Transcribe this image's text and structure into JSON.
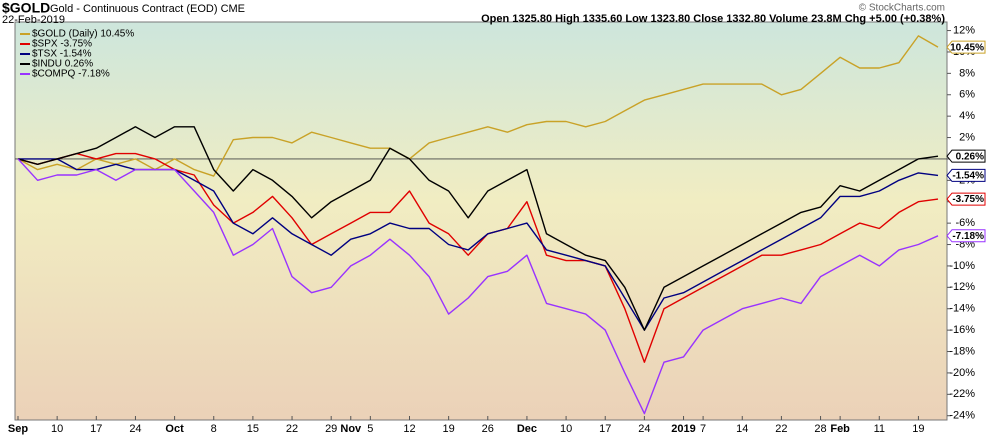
{
  "chart_data": {
    "type": "line",
    "symbol": "$GOLD",
    "title": "Gold - Continuous Contract (EOD) CME",
    "date": "22-Feb-2019",
    "stats": "Open 1325.80  High 1335.60  Low 1323.80  Close 1332.80  Volume 23.8M  Chg +5.00 (+0.38%)",
    "credit": "© StockCharts.com",
    "categories": [
      "Sep",
      null,
      "10",
      null,
      "17",
      null,
      "24",
      null,
      "Oct",
      null,
      "8",
      null,
      "15",
      null,
      "22",
      null,
      "29",
      "Nov",
      "5",
      null,
      "12",
      null,
      "19",
      null,
      "26",
      null,
      "Dec",
      null,
      "10",
      null,
      "17",
      null,
      "24",
      null,
      "2019",
      "7",
      null,
      "14",
      null,
      "22",
      null,
      "28",
      "Feb",
      null,
      "11",
      null,
      "19",
      null
    ],
    "series": [
      {
        "name": "$GOLD (Daily) 10.45%",
        "last_label": "10.45%",
        "color": "#c9a227",
        "values": [
          0,
          -1,
          -0.5,
          -1,
          0,
          -0.5,
          0,
          -1,
          0,
          -1,
          -1.6,
          1.8,
          2,
          2,
          1.5,
          2.5,
          2,
          1.5,
          1,
          1,
          0,
          1.5,
          2,
          2.5,
          3,
          2.5,
          3.2,
          3.5,
          3.5,
          3,
          3.5,
          4.5,
          5.5,
          6,
          6.5,
          7,
          7,
          7,
          7,
          6,
          6.5,
          8,
          9.5,
          8.5,
          8.5,
          9,
          11.5,
          10.45
        ]
      },
      {
        "name": "$SPX -3.75%",
        "last_label": "-3.75%",
        "color": "#e00000",
        "values": [
          0,
          -0.5,
          0,
          0.5,
          0,
          0.5,
          0.5,
          0,
          -1,
          -1.5,
          -4.3,
          -6,
          -5,
          -3.5,
          -5.5,
          -8,
          -7,
          -6,
          -5,
          -5,
          -3,
          -6,
          -7,
          -9,
          -7,
          -6.5,
          -4,
          -9,
          -9.5,
          -9.5,
          -10,
          -14,
          -19,
          -14,
          -13,
          -12,
          -11,
          -10,
          -9,
          -9,
          -8.5,
          -8,
          -7,
          -6,
          -6.5,
          -5,
          -4,
          -3.75
        ]
      },
      {
        "name": "$TSX -1.54%",
        "last_label": "-1.54%",
        "color": "#000080",
        "values": [
          0,
          0,
          0,
          -1,
          -1,
          -0.5,
          -1,
          -1,
          -1,
          -2,
          -3,
          -6,
          -7,
          -5.5,
          -7,
          -8,
          -9,
          -7.5,
          -7,
          -6,
          -6.5,
          -6.5,
          -8,
          -8.5,
          -7,
          -6.5,
          -6,
          -8.5,
          -9,
          -9.5,
          -10,
          -13,
          -16,
          -13,
          -12.5,
          -11.5,
          -10.5,
          -9.5,
          -8.5,
          -7.5,
          -6.5,
          -5.5,
          -3.5,
          -3.5,
          -3,
          -2,
          -1.3,
          -1.54
        ]
      },
      {
        "name": "$INDU 0.26%",
        "last_label": "0.26%",
        "color": "#000000",
        "values": [
          0,
          -0.5,
          0,
          0.5,
          1,
          2,
          3,
          2,
          3,
          3,
          -1,
          -3,
          -1,
          -2,
          -3.5,
          -5.5,
          -4,
          -3,
          -2,
          1,
          0,
          -2,
          -3,
          -5.5,
          -3,
          -2,
          -1,
          -7,
          -8,
          -9,
          -9.5,
          -12,
          -16,
          -12,
          -11,
          -10,
          -9,
          -8,
          -7,
          -6,
          -5,
          -4.5,
          -2.5,
          -3,
          -2,
          -1,
          0,
          0.26
        ]
      },
      {
        "name": "$COMPQ -7.18%",
        "last_label": "-7.18%",
        "color": "#9933ff",
        "values": [
          0,
          -2,
          -1.5,
          -1.5,
          -1,
          -2,
          -1,
          -1,
          -1,
          -3,
          -5,
          -9,
          -8,
          -6.5,
          -11,
          -12.5,
          -12,
          -10,
          -9,
          -7.5,
          -9,
          -11,
          -14.5,
          -13,
          -11,
          -10.5,
          -9,
          -13.5,
          -14,
          -14.5,
          -16,
          -20,
          -23.8,
          -19,
          -18.5,
          -16,
          -15,
          -14,
          -13.5,
          -13,
          -13.5,
          -11,
          -10,
          -9,
          -10,
          -8.5,
          -8,
          -7.18
        ]
      }
    ],
    "ylim": [
      -24.4,
      12.8
    ],
    "yticks": [
      {
        "value": 12,
        "label": "12%"
      },
      {
        "value": 10,
        "label": "10%"
      },
      {
        "value": 8,
        "label": "8%"
      },
      {
        "value": 6,
        "label": "6%"
      },
      {
        "value": 4,
        "label": "4%"
      },
      {
        "value": 2,
        "label": "2%"
      },
      {
        "value": 0,
        "label": "0%"
      },
      {
        "value": -2,
        "label": "-2%"
      },
      {
        "value": -4,
        "label": "-4%"
      },
      {
        "value": -6,
        "label": "-6%"
      },
      {
        "value": -8,
        "label": "-8%"
      },
      {
        "value": -10,
        "label": "-10%"
      },
      {
        "value": -12,
        "label": "-12%"
      },
      {
        "value": -14,
        "label": "-14%"
      },
      {
        "value": -16,
        "label": "-16%"
      },
      {
        "value": -18,
        "label": "-18%"
      },
      {
        "value": -20,
        "label": "-20%"
      },
      {
        "value": -22,
        "label": "-22%"
      },
      {
        "value": -24,
        "label": "-24%"
      }
    ],
    "grid": false
  }
}
